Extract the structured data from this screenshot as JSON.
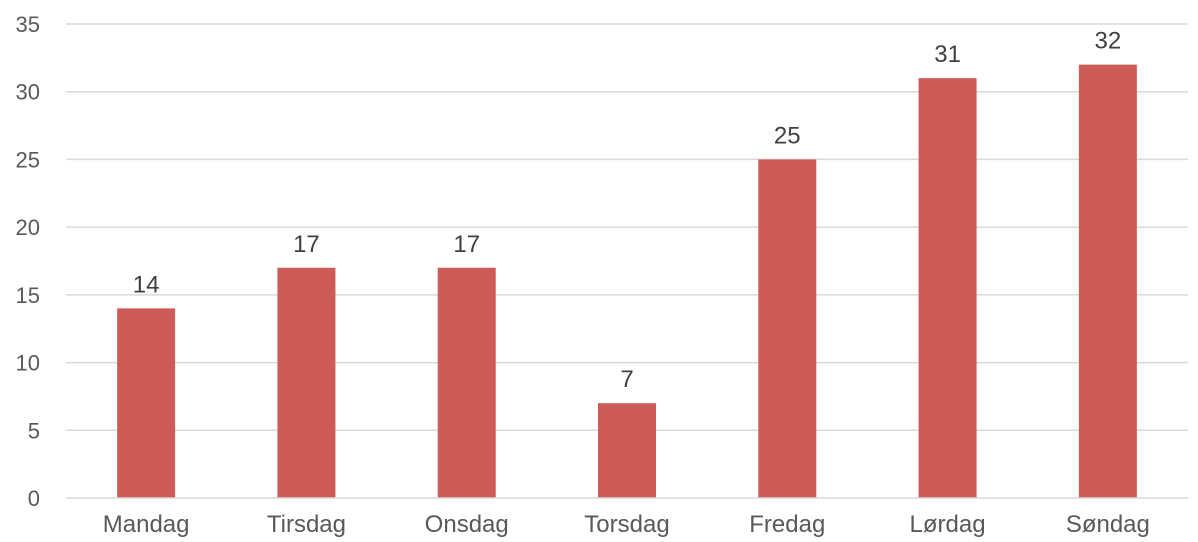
{
  "chart_data": {
    "type": "bar",
    "categories": [
      "Mandag",
      "Tirsdag",
      "Onsdag",
      "Torsdag",
      "Fredag",
      "Lørdag",
      "Søndag"
    ],
    "values": [
      14,
      17,
      17,
      7,
      25,
      31,
      32
    ],
    "title": "",
    "xlabel": "",
    "ylabel": "",
    "ylim": [
      0,
      35
    ],
    "yticks": [
      0,
      5,
      10,
      15,
      20,
      25,
      30,
      35
    ],
    "grid": true,
    "legend": "none",
    "data_labels": true,
    "bar_color": "#cd5b57"
  }
}
